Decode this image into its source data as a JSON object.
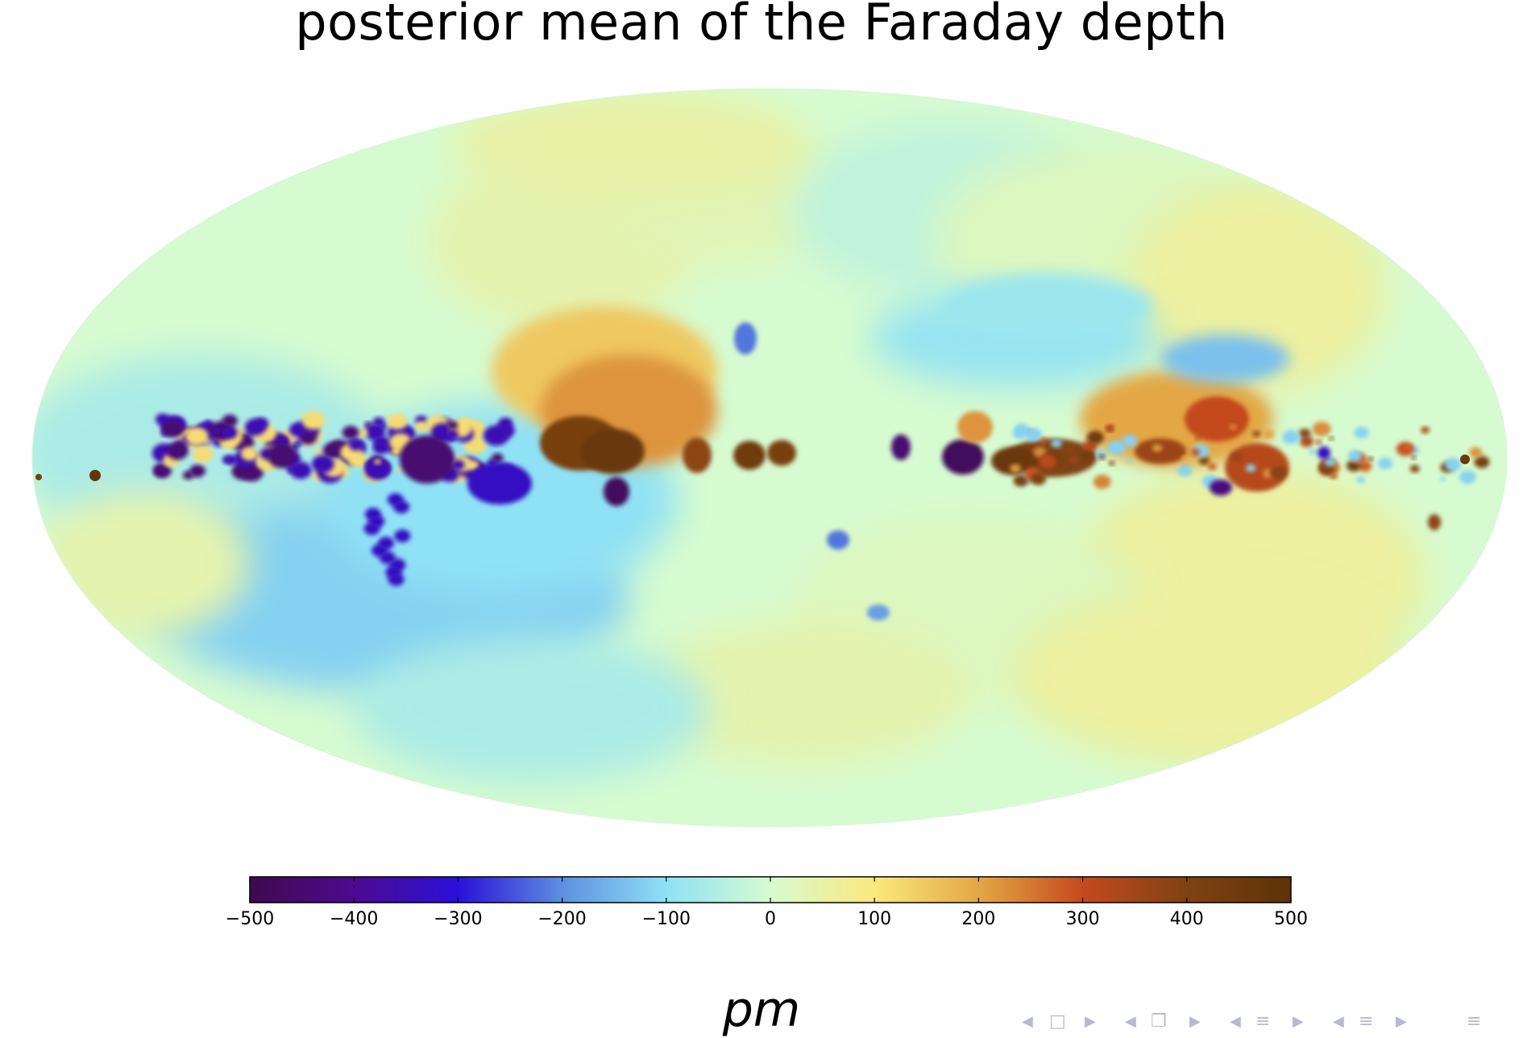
{
  "slide": {
    "title": "posterior mean of the Faraday depth",
    "unit_label": "pm"
  },
  "chart_data": {
    "type": "heatmap",
    "title": "posterior mean of the Faraday depth",
    "projection": "mollweide",
    "colorbar": {
      "orientation": "horizontal",
      "placement": "below map",
      "range": [
        -500,
        500
      ],
      "ticks": [
        -500,
        -400,
        -300,
        -200,
        -100,
        0,
        100,
        200,
        300,
        400,
        500
      ],
      "tick_labels": [
        "−500",
        "−400",
        "−300",
        "−200",
        "−100",
        "0",
        "100",
        "200",
        "300",
        "400",
        "500"
      ],
      "label": "pm",
      "colormap_stops": [
        {
          "value": -500,
          "color": "#3f0a4e"
        },
        {
          "value": -400,
          "color": "#4d0a8f"
        },
        {
          "value": -300,
          "color": "#2a10d8"
        },
        {
          "value": -200,
          "color": "#5d8fe0"
        },
        {
          "value": -100,
          "color": "#8fe1f5"
        },
        {
          "value": 0,
          "color": "#d6fbd0"
        },
        {
          "value": 100,
          "color": "#fbe87e"
        },
        {
          "value": 200,
          "color": "#e3a745"
        },
        {
          "value": 300,
          "color": "#c44a1e"
        },
        {
          "value": 400,
          "color": "#7f4212"
        },
        {
          "value": 500,
          "color": "#5e3207"
        }
      ]
    },
    "sky_features": [
      {
        "region": "background",
        "value": 0
      },
      {
        "region": "galactic-plane-left",
        "value": -350
      },
      {
        "region": "galactic-plane-left-dense",
        "value": -450
      },
      {
        "region": "southern-left-lobe",
        "value": -120
      },
      {
        "region": "central-bulge",
        "value": 420
      },
      {
        "region": "central-spur",
        "value": 150
      },
      {
        "region": "central-knot",
        "value": -480
      },
      {
        "region": "plane-right",
        "value": 400
      },
      {
        "region": "northern-right",
        "value": -80
      },
      {
        "region": "outer-edges-positive",
        "value": 60
      }
    ]
  },
  "nav": {
    "icons": [
      "triangle-left",
      "frame",
      "triangle-right",
      "triangle-left",
      "frames",
      "triangle-right",
      "triangle-left",
      "section",
      "triangle-right",
      "triangle-left",
      "subsection",
      "triangle-right",
      "menu"
    ]
  }
}
